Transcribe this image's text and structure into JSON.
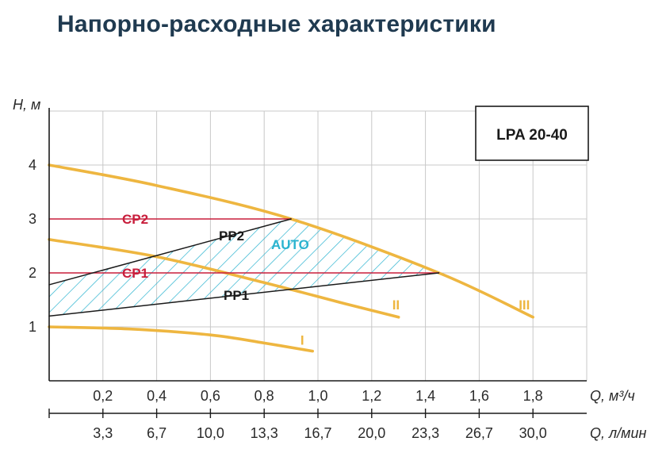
{
  "title": "Напорно-расходные характеристики",
  "chart_data": {
    "type": "line",
    "title": "Напорно-расходные характеристики",
    "model": "LPA 20-40",
    "ylabel": "H, м",
    "xlabel": "Q, м³/ч",
    "xlabel_secondary": "Q, л/мин",
    "xlim": [
      0,
      2.0
    ],
    "ylim": [
      0,
      5
    ],
    "grid": true,
    "x_ticks": [
      "0,2",
      "0,4",
      "0,6",
      "0,8",
      "1,0",
      "1,2",
      "1,4",
      "1,6",
      "1,8"
    ],
    "x_ticks_secondary": [
      "3,3",
      "6,7",
      "10,0",
      "13,3",
      "16,7",
      "20,0",
      "23,3",
      "26,7",
      "30,0"
    ],
    "y_ticks": [
      "1",
      "2",
      "3",
      "4"
    ],
    "colors": {
      "speed": "#eeb640",
      "cp": "#c81e3c",
      "pp": "#1a1a1a",
      "auto": "#2ab3cf",
      "grid": "#c8c8c8"
    },
    "series": [
      {
        "name": "I",
        "kind": "speed",
        "x": [
          0,
          0.3,
          0.6,
          0.8,
          0.98
        ],
        "y": [
          1.0,
          0.96,
          0.85,
          0.7,
          0.55
        ]
      },
      {
        "name": "II",
        "kind": "speed",
        "x": [
          0,
          0.4,
          0.8,
          1.1,
          1.3
        ],
        "y": [
          2.62,
          2.3,
          1.82,
          1.43,
          1.18
        ]
      },
      {
        "name": "III",
        "kind": "speed",
        "x": [
          0,
          0.4,
          0.9,
          1.45,
          1.8
        ],
        "y": [
          4.0,
          3.62,
          3.0,
          2.0,
          1.18
        ]
      },
      {
        "name": "CP2",
        "kind": "cp",
        "x": [
          0,
          0.9
        ],
        "y": [
          3.0,
          3.0
        ]
      },
      {
        "name": "CP1",
        "kind": "cp",
        "x": [
          0,
          1.45
        ],
        "y": [
          2.0,
          2.0
        ]
      },
      {
        "name": "PP2",
        "kind": "pp",
        "x": [
          0,
          0.9
        ],
        "y": [
          1.78,
          3.0
        ]
      },
      {
        "name": "PP1",
        "kind": "pp",
        "x": [
          0,
          1.45
        ],
        "y": [
          1.2,
          2.0
        ]
      }
    ],
    "region": {
      "name": "AUTO"
    }
  }
}
